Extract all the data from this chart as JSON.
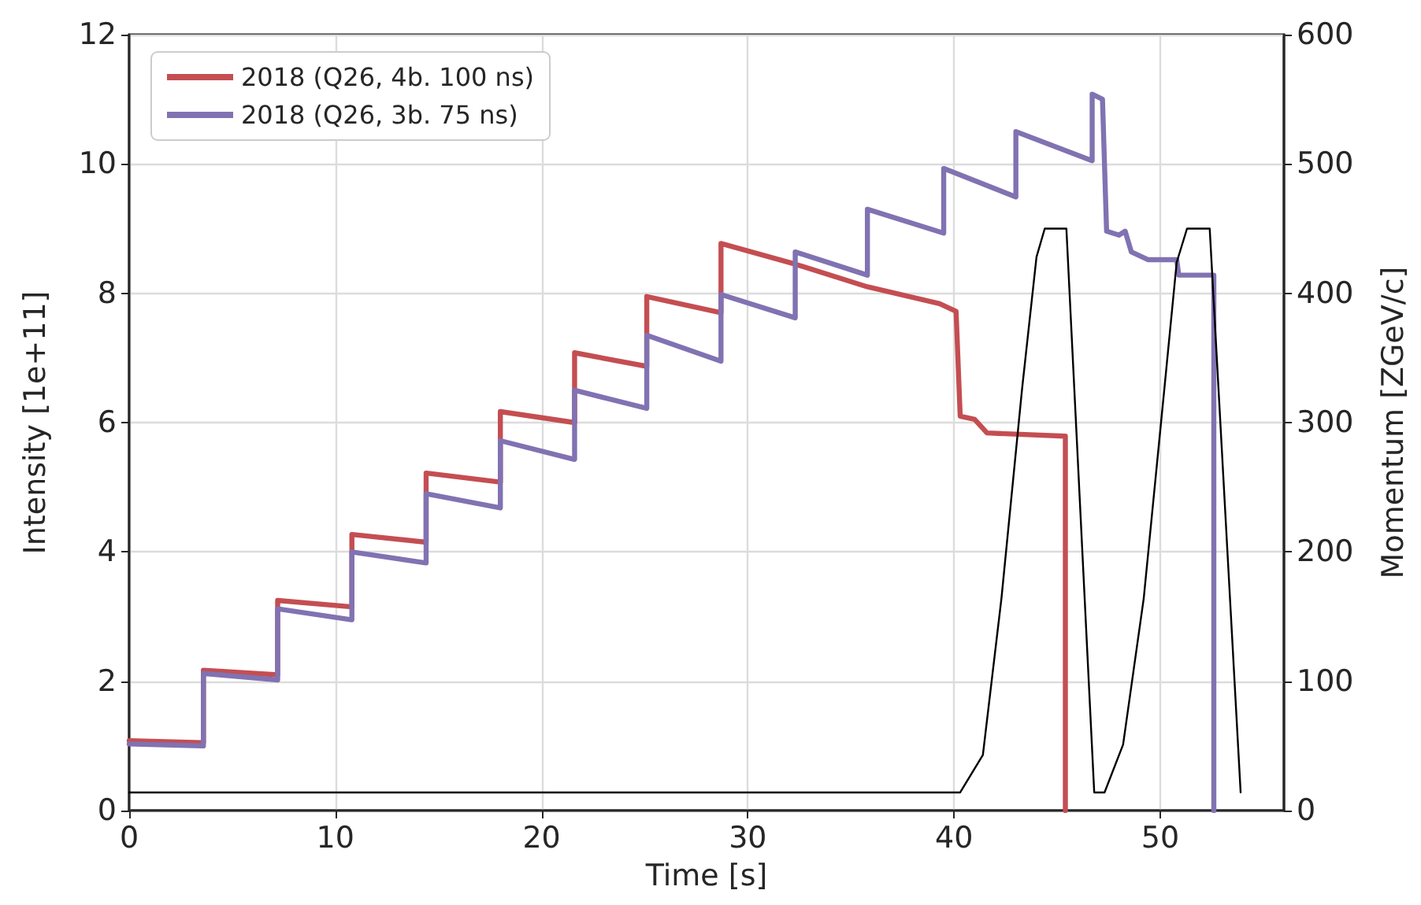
{
  "chart_data": {
    "type": "line",
    "xlabel": "Time [s]",
    "ylabel": "Intensity [1e+11]",
    "y2label": "Momentum [ZGeV/c]",
    "xlim": [
      0,
      56
    ],
    "xticks": [
      0,
      10,
      20,
      30,
      40,
      50
    ],
    "ylim": [
      0,
      12
    ],
    "yticks": [
      0,
      2,
      4,
      6,
      8,
      10,
      12
    ],
    "y2lim": [
      0,
      600
    ],
    "y2ticks": [
      0,
      100,
      200,
      300,
      400,
      500,
      600
    ],
    "grid": true,
    "legend": "top left",
    "series": [
      {
        "name": "2018 (Q26, 4b. 100 ns)",
        "color": "#c44e52",
        "x": [
          0,
          3.6,
          3.6,
          7.2,
          7.2,
          10.8,
          10.8,
          14.4,
          14.4,
          18.0,
          18.0,
          21.6,
          21.6,
          25.1,
          25.1,
          28.7,
          28.7,
          32.3,
          35.8,
          39.3,
          40.1,
          40.3,
          41.0,
          41.6,
          45.4,
          45.4
        ],
        "values": [
          1.08,
          1.05,
          2.17,
          2.1,
          3.25,
          3.15,
          4.27,
          4.15,
          5.22,
          5.08,
          6.17,
          6.0,
          7.08,
          6.87,
          7.95,
          7.7,
          8.77,
          8.45,
          8.1,
          7.84,
          7.72,
          6.1,
          6.05,
          5.84,
          5.79,
          0
        ]
      },
      {
        "name": "2018 (Q26, 3b. 75 ns)",
        "color": "#8172b2",
        "x": [
          0,
          3.6,
          3.6,
          7.2,
          7.2,
          10.8,
          10.8,
          14.4,
          14.4,
          18.0,
          18.0,
          21.6,
          21.6,
          25.1,
          25.1,
          28.7,
          28.7,
          32.3,
          32.3,
          35.8,
          35.8,
          39.5,
          39.5,
          43.0,
          43.0,
          46.7,
          46.7,
          47.2,
          47.4,
          48.0,
          48.3,
          48.6,
          49.4,
          50.8,
          50.9,
          52.6,
          52.6
        ],
        "values": [
          1.03,
          1.0,
          2.12,
          2.02,
          3.12,
          2.95,
          4.0,
          3.83,
          4.9,
          4.68,
          5.72,
          5.43,
          6.5,
          6.22,
          7.35,
          6.95,
          7.98,
          7.62,
          8.64,
          8.28,
          9.3,
          8.93,
          9.93,
          9.49,
          10.5,
          10.05,
          11.08,
          11.0,
          8.96,
          8.9,
          8.96,
          8.64,
          8.52,
          8.52,
          8.28,
          8.28,
          0
        ]
      },
      {
        "color": "#000000",
        "axis": "y2",
        "x": [
          0,
          40.3,
          41.4,
          42.3,
          43.3,
          44.0,
          44.4,
          45.45,
          46.8,
          47.3,
          48.2,
          49.2,
          50.2,
          50.8,
          51.3,
          52.4,
          53.9
        ],
        "values": [
          14,
          14,
          43,
          164,
          326,
          428,
          450,
          450,
          14,
          14,
          51,
          164,
          326,
          424,
          450,
          450,
          14
        ]
      }
    ]
  }
}
